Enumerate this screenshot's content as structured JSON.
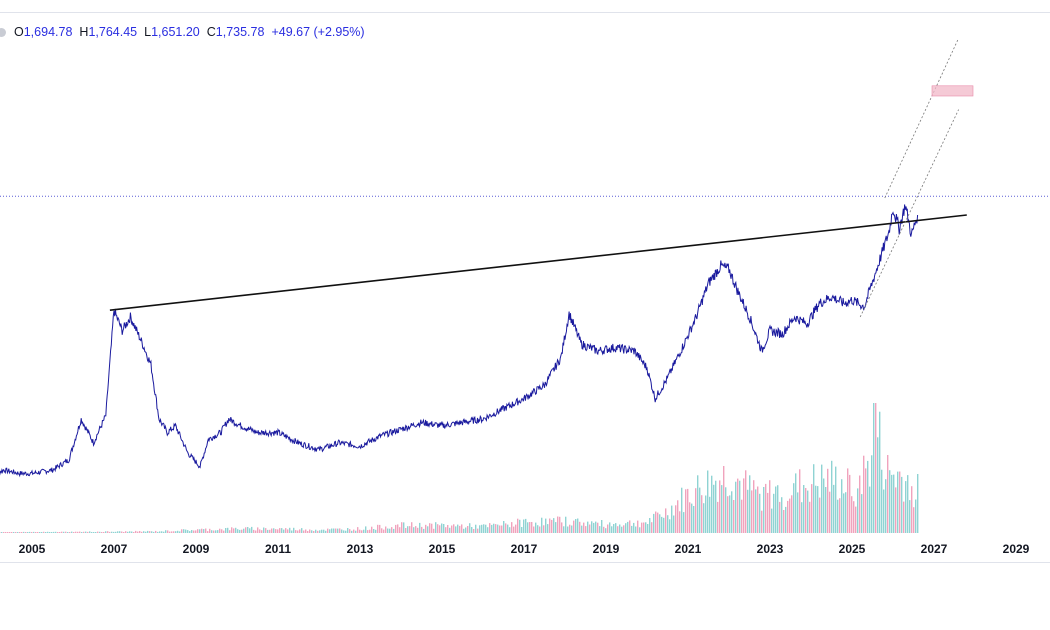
{
  "legend": {
    "open_label": "O",
    "open_value": "1,694.78",
    "high_label": "H",
    "high_value": "1,764.45",
    "low_label": "L",
    "low_value": "1,651.20",
    "close_label": "C",
    "close_value": "1,735.78",
    "change": "+49.67 (+2.95%)"
  },
  "colors": {
    "price_line": "#1a1a9e",
    "recent_line": "#000000",
    "trendline": "#111111",
    "channel": "#777777",
    "dotted_level": "#5b5fd6",
    "volume_up": "#8fd3d3",
    "volume_down": "#f0a3bd",
    "target_box": "#f2b8c8"
  },
  "chart_data": {
    "type": "line",
    "title": "",
    "xlabel": "",
    "ylabel": "",
    "xlim": [
      2004.0,
      2029.4
    ],
    "ylim_relative_to_last_close": [
      0,
      2.2
    ],
    "x_ticks": [
      "2005",
      "2007",
      "2009",
      "2011",
      "2013",
      "2015",
      "2017",
      "2019",
      "2021",
      "2023",
      "2025",
      "2027",
      "2029"
    ],
    "price_series": {
      "name": "",
      "points": [
        [
          2004.0,
          0.23
        ],
        [
          2004.3,
          0.25
        ],
        [
          2004.7,
          0.24
        ],
        [
          2005.0,
          0.24
        ],
        [
          2005.5,
          0.25
        ],
        [
          2005.9,
          0.28
        ],
        [
          2006.2,
          0.4
        ],
        [
          2006.5,
          0.33
        ],
        [
          2006.8,
          0.41
        ],
        [
          2007.0,
          0.72
        ],
        [
          2007.2,
          0.66
        ],
        [
          2007.4,
          0.7
        ],
        [
          2007.7,
          0.62
        ],
        [
          2007.9,
          0.56
        ],
        [
          2008.1,
          0.4
        ],
        [
          2008.3,
          0.36
        ],
        [
          2008.5,
          0.38
        ],
        [
          2008.8,
          0.3
        ],
        [
          2009.1,
          0.26
        ],
        [
          2009.3,
          0.34
        ],
        [
          2009.6,
          0.36
        ],
        [
          2009.8,
          0.4
        ],
        [
          2010.1,
          0.38
        ],
        [
          2010.5,
          0.36
        ],
        [
          2011.0,
          0.36
        ],
        [
          2011.5,
          0.33
        ],
        [
          2012.0,
          0.31
        ],
        [
          2012.5,
          0.33
        ],
        [
          2013.0,
          0.32
        ],
        [
          2013.5,
          0.35
        ],
        [
          2014.0,
          0.37
        ],
        [
          2014.5,
          0.39
        ],
        [
          2015.0,
          0.38
        ],
        [
          2015.5,
          0.39
        ],
        [
          2016.0,
          0.4
        ],
        [
          2016.5,
          0.43
        ],
        [
          2017.0,
          0.46
        ],
        [
          2017.5,
          0.5
        ],
        [
          2017.9,
          0.58
        ],
        [
          2018.1,
          0.71
        ],
        [
          2018.4,
          0.62
        ],
        [
          2018.8,
          0.6
        ],
        [
          2019.2,
          0.61
        ],
        [
          2019.7,
          0.6
        ],
        [
          2020.0,
          0.55
        ],
        [
          2020.2,
          0.46
        ],
        [
          2020.5,
          0.52
        ],
        [
          2020.9,
          0.62
        ],
        [
          2021.2,
          0.7
        ],
        [
          2021.5,
          0.8
        ],
        [
          2021.8,
          0.85
        ],
        [
          2022.0,
          0.84
        ],
        [
          2022.2,
          0.78
        ],
        [
          2022.5,
          0.7
        ],
        [
          2022.8,
          0.6
        ],
        [
          2023.0,
          0.66
        ],
        [
          2023.3,
          0.65
        ],
        [
          2023.6,
          0.7
        ],
        [
          2023.9,
          0.68
        ],
        [
          2024.2,
          0.74
        ],
        [
          2024.5,
          0.76
        ],
        [
          2024.8,
          0.74
        ],
        [
          2025.0,
          0.75
        ],
        [
          2025.3,
          0.73
        ],
        [
          2025.6,
          0.84
        ],
        [
          2025.9,
          0.95
        ],
        [
          2026.0,
          1.02
        ],
        [
          2026.15,
          0.96
        ],
        [
          2026.3,
          1.03
        ],
        [
          2026.45,
          0.94
        ],
        [
          2026.6,
          1.0
        ]
      ]
    },
    "volume_series": {
      "name": "",
      "relative_heights": [
        [
          2004.0,
          0.005
        ],
        [
          2006.0,
          0.01
        ],
        [
          2008.0,
          0.015
        ],
        [
          2009.0,
          0.03
        ],
        [
          2010.0,
          0.04
        ],
        [
          2011.0,
          0.04
        ],
        [
          2012.0,
          0.03
        ],
        [
          2013.0,
          0.04
        ],
        [
          2014.0,
          0.07
        ],
        [
          2015.0,
          0.07
        ],
        [
          2016.0,
          0.06
        ],
        [
          2017.0,
          0.1
        ],
        [
          2018.0,
          0.11
        ],
        [
          2019.0,
          0.08
        ],
        [
          2020.0,
          0.1
        ],
        [
          2020.5,
          0.2
        ],
        [
          2021.0,
          0.35
        ],
        [
          2021.5,
          0.45
        ],
        [
          2022.0,
          0.52
        ],
        [
          2022.5,
          0.38
        ],
        [
          2023.0,
          0.35
        ],
        [
          2023.5,
          0.4
        ],
        [
          2024.0,
          0.45
        ],
        [
          2024.5,
          0.48
        ],
        [
          2025.0,
          0.4
        ],
        [
          2025.4,
          0.6
        ],
        [
          2025.55,
          1.0
        ],
        [
          2025.8,
          0.55
        ],
        [
          2026.2,
          0.5
        ],
        [
          2026.6,
          0.4
        ]
      ]
    },
    "trendline": [
      [
        2006.9,
        0.72
      ],
      [
        2027.8,
        1.0
      ]
    ],
    "channel_upper": [
      [
        2025.8,
        1.05
      ],
      [
        2027.6,
        1.52
      ]
    ],
    "channel_lower": [
      [
        2025.2,
        0.7
      ],
      [
        2027.6,
        1.31
      ]
    ],
    "dotted_level": 1.055,
    "target_zone": [
      2027.0,
      1.35,
      2028.0,
      1.38
    ],
    "grid": false
  }
}
